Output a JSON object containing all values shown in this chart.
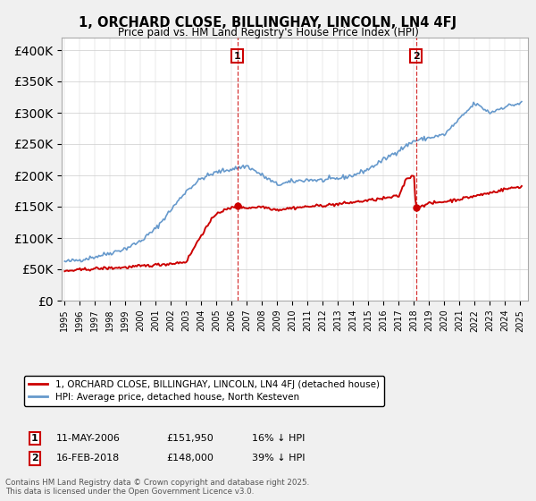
{
  "title": "1, ORCHARD CLOSE, BILLINGHAY, LINCOLN, LN4 4FJ",
  "subtitle": "Price paid vs. HM Land Registry's House Price Index (HPI)",
  "ylim": [
    0,
    420000
  ],
  "yticks": [
    0,
    50000,
    100000,
    150000,
    200000,
    250000,
    300000,
    350000,
    400000
  ],
  "xlim_start": 1994.8,
  "xlim_end": 2025.5,
  "property_color": "#cc0000",
  "hpi_color": "#6699cc",
  "sale1_x": 2006.36,
  "sale1_y": 151950,
  "sale2_x": 2018.12,
  "sale2_y": 148000,
  "legend_property": "1, ORCHARD CLOSE, BILLINGHAY, LINCOLN, LN4 4FJ (detached house)",
  "legend_hpi": "HPI: Average price, detached house, North Kesteven",
  "footer": "Contains HM Land Registry data © Crown copyright and database right 2025.\nThis data is licensed under the Open Government Licence v3.0.",
  "background_color": "#f0f0f0",
  "plot_background": "#ffffff",
  "hpi_years": [
    1995,
    1996,
    1997,
    1998,
    1999,
    2000,
    2001,
    2002,
    2003,
    2004,
    2005,
    2006,
    2007,
    2008,
    2009,
    2010,
    2011,
    2012,
    2013,
    2014,
    2015,
    2016,
    2017,
    2018,
    2019,
    2020,
    2021,
    2022,
    2023,
    2024,
    2025
  ],
  "hpi_prices": [
    62000,
    65000,
    70000,
    76000,
    83000,
    95000,
    115000,
    145000,
    175000,
    195000,
    205000,
    210000,
    215000,
    200000,
    185000,
    190000,
    193000,
    192000,
    195000,
    200000,
    210000,
    225000,
    240000,
    255000,
    260000,
    265000,
    290000,
    315000,
    300000,
    310000,
    315000
  ],
  "prop_years": [
    1995,
    1996,
    1997,
    1998,
    1999,
    2000,
    2001,
    2002,
    2003,
    2004,
    2005,
    2006,
    2006.36,
    2006.5,
    2007,
    2008,
    2009,
    2010,
    2011,
    2012,
    2013,
    2014,
    2015,
    2016,
    2017,
    2017.5,
    2018,
    2018.12,
    2018.5,
    2019,
    2020,
    2021,
    2022,
    2023,
    2024,
    2025
  ],
  "prop_prices": [
    47000,
    49000,
    51000,
    52000,
    53000,
    55000,
    57000,
    59000,
    62000,
    105000,
    140000,
    148000,
    151950,
    150000,
    148000,
    150000,
    145000,
    148000,
    150000,
    152000,
    154000,
    157000,
    160000,
    163000,
    167000,
    195000,
    200000,
    148000,
    152000,
    155000,
    158000,
    162000,
    167000,
    172000,
    178000,
    182000
  ],
  "sale1_date": "11-MAY-2006",
  "sale1_price": "£151,950",
  "sale1_hpi_text": "16% ↓ HPI",
  "sale2_date": "16-FEB-2018",
  "sale2_price": "£148,000",
  "sale2_hpi_text": "39% ↓ HPI"
}
